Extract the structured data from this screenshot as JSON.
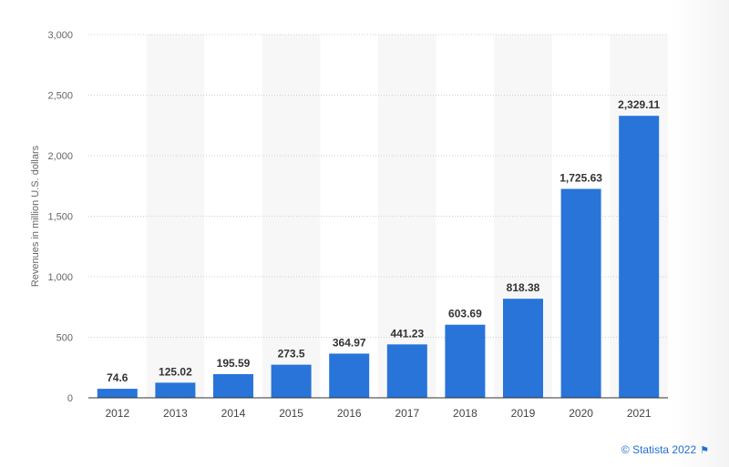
{
  "chart_data": {
    "type": "bar",
    "categories": [
      "2012",
      "2013",
      "2014",
      "2015",
      "2016",
      "2017",
      "2018",
      "2019",
      "2020",
      "2021"
    ],
    "values": [
      74.6,
      125.02,
      195.59,
      273.5,
      364.97,
      441.23,
      603.69,
      818.38,
      1725.63,
      2329.11
    ],
    "value_labels": [
      "74.6",
      "125.02",
      "195.59",
      "273.5",
      "364.97",
      "441.23",
      "603.69",
      "818.38",
      "1,725.63",
      "2,329.11"
    ],
    "ylabel": "Revenues in million U.S. dollars",
    "xlabel": "",
    "ylim": [
      0,
      3000
    ],
    "yticks": [
      0,
      500,
      1000,
      1500,
      2000,
      2500,
      3000
    ],
    "ytick_labels": [
      "0",
      "500",
      "1,000",
      "1,500",
      "2,000",
      "2,500",
      "3,000"
    ],
    "grid": true,
    "bar_color": "#2874d9",
    "alt_band_color": "#f7f7f7"
  },
  "credit": {
    "text": "© Statista 2022",
    "icon": "flag-icon",
    "color": "#1f6fd1"
  }
}
